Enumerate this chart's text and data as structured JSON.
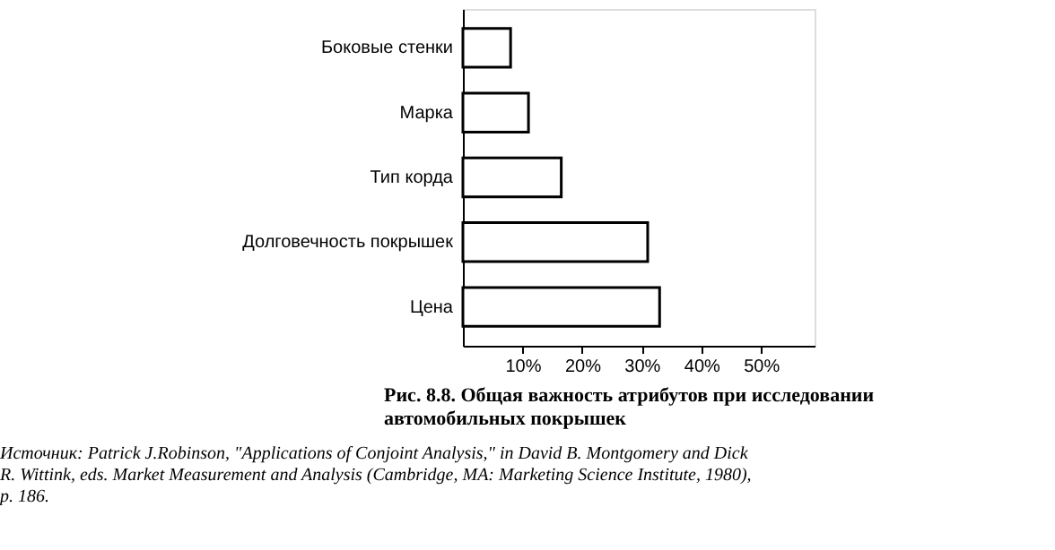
{
  "chart_data": {
    "type": "bar",
    "orientation": "horizontal",
    "title": "Рис. 8.8. Общая важность атрибутов при исследовании автомобильных покрышек",
    "categories": [
      "Боковые стенки",
      "Марка",
      "Тип корда",
      "Долговечность покрышек",
      "Цена"
    ],
    "values": [
      8,
      11,
      16.5,
      31,
      33
    ],
    "color": "#ffffff",
    "xlim": [
      0,
      59
    ],
    "xticks": [
      {
        "value": 10,
        "label": "10%"
      },
      {
        "value": 20,
        "label": "20%"
      },
      {
        "value": 30,
        "label": "30%"
      },
      {
        "value": 40,
        "label": "40%"
      },
      {
        "value": 50,
        "label": "50%"
      }
    ],
    "grid": false,
    "annotations": [
      "Источник: Patrick J.Robinson, \"Applications of Conjoint Analysis,\" in David B. Montgomery and Dick R. Wittink, eds. Market Measurement and Analysis (Cambridge, MA: Marketing Science Institute, 1980), p. 186."
    ]
  }
}
